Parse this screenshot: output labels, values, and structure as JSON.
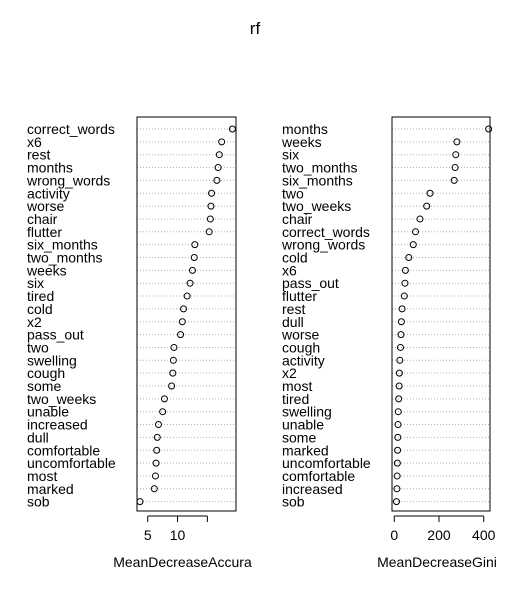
{
  "title": "rf",
  "chart_data": [
    {
      "type": "scatter",
      "panel": "left",
      "title": "rf",
      "xlabel": "MeanDecreaseAccura",
      "ylabel": "",
      "xlim": [
        3.2,
        19.8
      ],
      "xticks": [
        5,
        10,
        15
      ],
      "xtick_labels": [
        "5",
        "10",
        ""
      ],
      "grid": "dotted horizontal lines",
      "categories": [
        "correct_words",
        "x6",
        "rest",
        "months",
        "wrong_words",
        "activity",
        "worse",
        "chair",
        "flutter",
        "six_months",
        "two_months",
        "weeks",
        "six",
        "tired",
        "cold",
        "x2",
        "pass_out",
        "two",
        "swelling",
        "cough",
        "some",
        "two_weeks",
        "unable",
        "increased",
        "dull",
        "comfortable",
        "uncomfortable",
        "most",
        "marked",
        "sob"
      ],
      "values": [
        19.2,
        17.4,
        17.0,
        16.8,
        16.6,
        15.7,
        15.6,
        15.5,
        15.3,
        12.9,
        12.8,
        12.5,
        12.1,
        11.6,
        11.0,
        10.8,
        10.5,
        9.4,
        9.3,
        9.2,
        9.0,
        7.8,
        7.5,
        6.8,
        6.6,
        6.5,
        6.4,
        6.3,
        6.1,
        3.7
      ]
    },
    {
      "type": "scatter",
      "panel": "right",
      "title": "rf",
      "xlabel": "MeanDecreaseGini",
      "ylabel": "",
      "xlim": [
        -10,
        428
      ],
      "xticks": [
        0,
        200,
        400
      ],
      "xtick_labels": [
        "0",
        "200",
        "400"
      ],
      "grid": "dotted horizontal lines",
      "categories": [
        "months",
        "weeks",
        "six",
        "two_months",
        "six_months",
        "two",
        "two_weeks",
        "chair",
        "correct_words",
        "wrong_words",
        "cold",
        "x6",
        "pass_out",
        "flutter",
        "rest",
        "dull",
        "worse",
        "cough",
        "activity",
        "x2",
        "most",
        "tired",
        "swelling",
        "unable",
        "some",
        "marked",
        "uncomfortable",
        "comfortable",
        "increased",
        "sob"
      ],
      "values": [
        422,
        280,
        275,
        272,
        268,
        160,
        145,
        115,
        95,
        85,
        65,
        50,
        48,
        45,
        35,
        32,
        30,
        28,
        25,
        23,
        22,
        20,
        18,
        17,
        16,
        15,
        14,
        13,
        12,
        10
      ]
    }
  ]
}
